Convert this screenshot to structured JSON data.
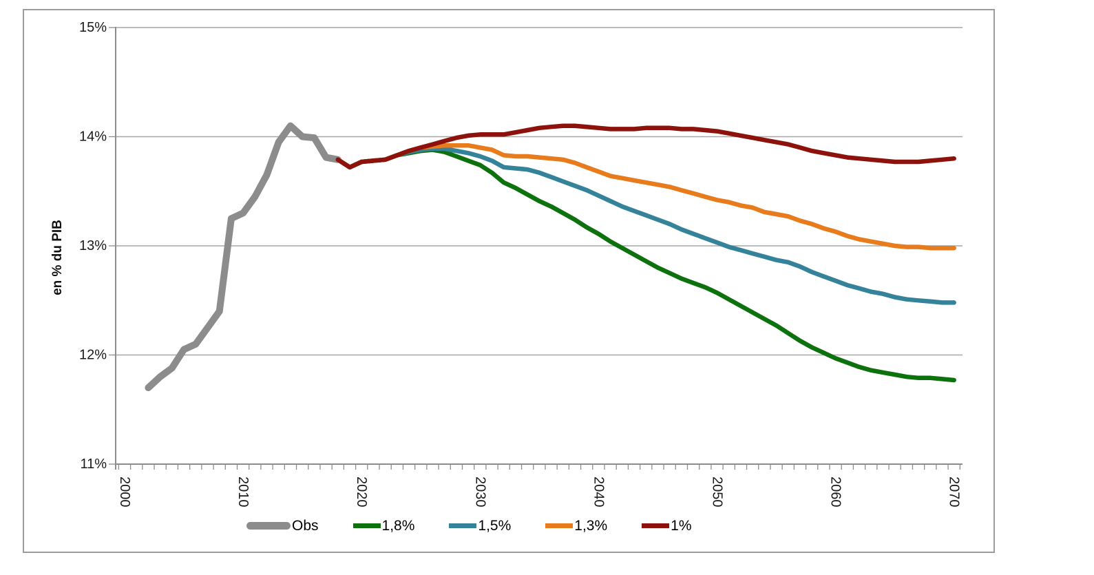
{
  "chart_data": {
    "type": "line",
    "title": "",
    "xlabel": "",
    "ylabel": "en % du PIB",
    "xlim": [
      2000,
      2070
    ],
    "ylim": [
      11,
      15
    ],
    "grid": "horizontal",
    "legend_position": "bottom",
    "x_ticks": [
      2000,
      2010,
      2020,
      2030,
      2040,
      2050,
      2060,
      2070
    ],
    "y_ticks": [
      {
        "value": 15,
        "label": "15%"
      },
      {
        "value": 14,
        "label": "14%"
      },
      {
        "value": 13,
        "label": "13%"
      },
      {
        "value": 12,
        "label": "12%"
      },
      {
        "value": 11,
        "label": "11%"
      }
    ],
    "style": {
      "grid_color": "#A6A6A6",
      "axis_color": "#8C8C8C",
      "text_color": "#1A1A1A",
      "frame_color": "#9B9B9B",
      "background": "#FFFFFF"
    },
    "series": [
      {
        "id": "obs",
        "name": "Obs",
        "color": "#8C8C8C",
        "line_width": 10,
        "start_year": 2002,
        "values": [
          11.7,
          11.8,
          11.88,
          12.05,
          12.1,
          12.25,
          12.4,
          13.25,
          13.3,
          13.45,
          13.65,
          13.95,
          14.1,
          14.0,
          13.99,
          13.81,
          13.79
        ]
      },
      {
        "id": "s18",
        "name": "1,8%",
        "color": "#0D720D",
        "line_width": 6.5,
        "start_year": 2018,
        "values": [
          13.79,
          13.72,
          13.77,
          13.78,
          13.79,
          13.83,
          13.85,
          13.87,
          13.88,
          13.86,
          13.82,
          13.78,
          13.74,
          13.67,
          13.58,
          13.53,
          13.47,
          13.41,
          13.36,
          13.3,
          13.24,
          13.17,
          13.11,
          13.04,
          12.98,
          12.92,
          12.86,
          12.8,
          12.75,
          12.7,
          12.66,
          12.62,
          12.57,
          12.51,
          12.45,
          12.39,
          12.33,
          12.27,
          12.2,
          12.13,
          12.07,
          12.02,
          11.97,
          11.93,
          11.89,
          11.86,
          11.84,
          11.82,
          11.8,
          11.79,
          11.79,
          11.78,
          11.77
        ]
      },
      {
        "id": "s15",
        "name": "1,5%",
        "color": "#35839B",
        "line_width": 6.5,
        "start_year": 2018,
        "values": [
          13.79,
          13.72,
          13.77,
          13.78,
          13.79,
          13.83,
          13.86,
          13.88,
          13.89,
          13.89,
          13.87,
          13.85,
          13.82,
          13.78,
          13.72,
          13.71,
          13.7,
          13.67,
          13.63,
          13.59,
          13.55,
          13.51,
          13.46,
          13.41,
          13.36,
          13.32,
          13.28,
          13.24,
          13.2,
          13.15,
          13.11,
          13.07,
          13.03,
          12.99,
          12.96,
          12.93,
          12.9,
          12.87,
          12.85,
          12.81,
          12.76,
          12.72,
          12.68,
          12.64,
          12.61,
          12.58,
          12.56,
          12.53,
          12.51,
          12.5,
          12.49,
          12.48,
          12.48
        ]
      },
      {
        "id": "s13",
        "name": "1,3%",
        "color": "#E87B1B",
        "line_width": 6.5,
        "start_year": 2018,
        "values": [
          13.79,
          13.72,
          13.77,
          13.78,
          13.79,
          13.83,
          13.87,
          13.9,
          13.91,
          13.92,
          13.92,
          13.92,
          13.9,
          13.88,
          13.83,
          13.82,
          13.82,
          13.81,
          13.8,
          13.79,
          13.76,
          13.72,
          13.68,
          13.64,
          13.62,
          13.6,
          13.58,
          13.56,
          13.54,
          13.51,
          13.48,
          13.45,
          13.42,
          13.4,
          13.37,
          13.35,
          13.31,
          13.29,
          13.27,
          13.23,
          13.2,
          13.16,
          13.13,
          13.09,
          13.06,
          13.04,
          13.02,
          13.0,
          12.99,
          12.99,
          12.98,
          12.98,
          12.98
        ]
      },
      {
        "id": "s10",
        "name": "1%",
        "color": "#8C120B",
        "line_width": 6.5,
        "start_year": 2018,
        "values": [
          13.79,
          13.72,
          13.77,
          13.78,
          13.79,
          13.83,
          13.87,
          13.9,
          13.93,
          13.96,
          13.99,
          14.01,
          14.02,
          14.02,
          14.02,
          14.04,
          14.06,
          14.08,
          14.09,
          14.1,
          14.1,
          14.09,
          14.08,
          14.07,
          14.07,
          14.07,
          14.08,
          14.08,
          14.08,
          14.07,
          14.07,
          14.06,
          14.05,
          14.03,
          14.01,
          13.99,
          13.97,
          13.95,
          13.93,
          13.9,
          13.87,
          13.85,
          13.83,
          13.81,
          13.8,
          13.79,
          13.78,
          13.77,
          13.77,
          13.77,
          13.78,
          13.79,
          13.8
        ]
      }
    ]
  }
}
